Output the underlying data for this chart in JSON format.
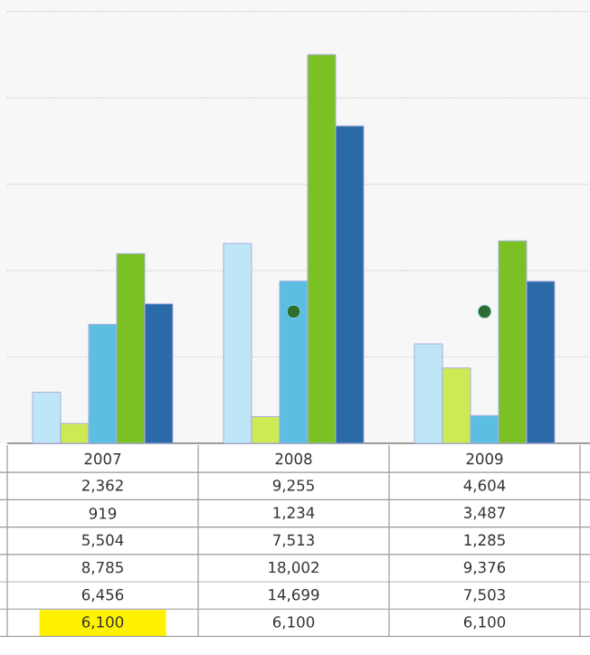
{
  "chart_data": {
    "type": "bar",
    "categories": [
      "2007",
      "2008",
      "2009"
    ],
    "series": [
      {
        "color": "#bfe6f6",
        "values": [
          2362,
          9255,
          4604
        ],
        "value_labels": [
          "2,362",
          "9,255",
          "4,604"
        ]
      },
      {
        "color": "#cdea55",
        "values": [
          919,
          1234,
          3487
        ],
        "value_labels": [
          "919",
          "1,234",
          "3,487"
        ]
      },
      {
        "color": "#5cbfe2",
        "values": [
          5504,
          7513,
          1285
        ],
        "value_labels": [
          "5,504",
          "7,513",
          "1,285"
        ]
      },
      {
        "color": "#7cc124",
        "values": [
          8785,
          18002,
          9376
        ],
        "value_labels": [
          "8,785",
          "18,002",
          "9,376"
        ]
      },
      {
        "color": "#2a6aa8",
        "values": [
          6456,
          14699,
          7503
        ],
        "value_labels": [
          "6,456",
          "14,699",
          "7,503"
        ]
      },
      {
        "type": "scatter",
        "color": "#2e6b2e",
        "values": [
          null,
          6100,
          6100
        ],
        "value_labels": [
          "6,100",
          "6,100",
          "6,100"
        ]
      }
    ],
    "grid": "y",
    "tick_labels": "x"
  }
}
